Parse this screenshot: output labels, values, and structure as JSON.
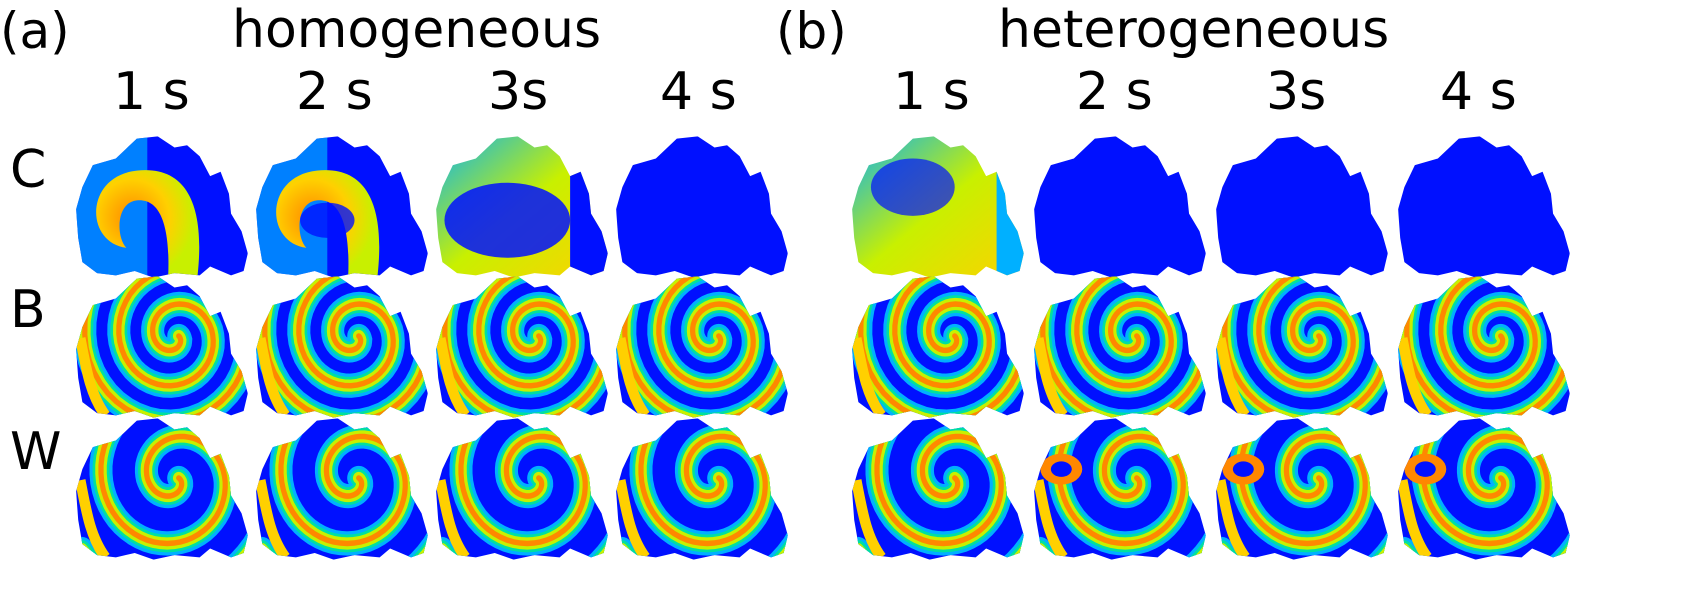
{
  "panels": [
    {
      "label": "(a)",
      "title": "homogeneous",
      "times": [
        "1 s",
        "2 s",
        "3s",
        "4 s"
      ]
    },
    {
      "label": "(b)",
      "title": "heterogeneous",
      "times": [
        "1 s",
        "2 s",
        "3s",
        "4 s"
      ]
    }
  ],
  "rows": [
    "C",
    "B",
    "W"
  ],
  "colormap": [
    "#0010ff",
    "#00b0ff",
    "#00e0a0",
    "#c8f000",
    "#ffd000",
    "#ff8800"
  ],
  "tiles": [
    [
      "rotor-large",
      "rotor-large-dark-core",
      "mostly-yellow",
      "all-blue",
      "mixed-green",
      "all-blue",
      "all-blue",
      "all-blue"
    ],
    [
      "spiral",
      "spiral",
      "spiral",
      "spiral",
      "spiral",
      "spiral",
      "spiral",
      "spiral"
    ],
    [
      "spiral-wide",
      "spiral-wide",
      "spiral-wide",
      "spiral-wide",
      "spiral-wide",
      "spiral-broken",
      "spiral-broken",
      "spiral-broken"
    ]
  ]
}
